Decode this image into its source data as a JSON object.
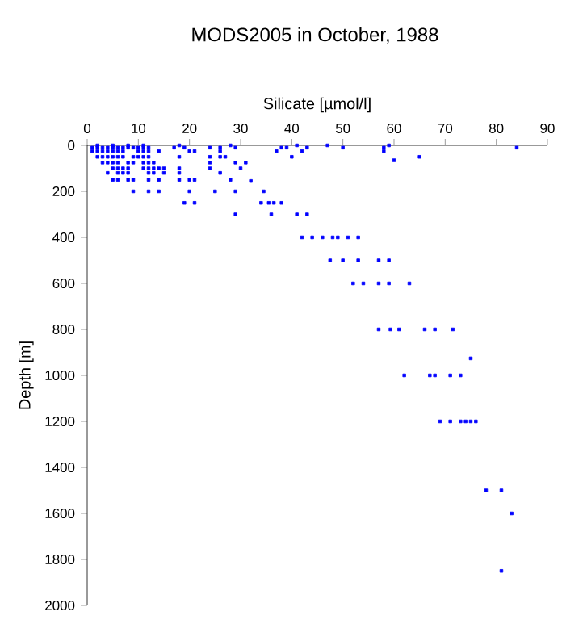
{
  "chart_data": {
    "type": "scatter",
    "title": "MODS2005 in October, 1988",
    "xlabel": "Silicate [µmol/l]",
    "ylabel": "Depth [m]",
    "xlim": [
      0,
      90
    ],
    "xticks": [
      0,
      10,
      20,
      30,
      40,
      50,
      60,
      70,
      80,
      90
    ],
    "ylim": [
      2000,
      0
    ],
    "yticks": [
      0,
      200,
      400,
      600,
      800,
      1000,
      1200,
      1400,
      1600,
      1800,
      2000
    ],
    "grid": false,
    "marker": "square",
    "series": [
      {
        "color": "#0000ff",
        "x": [
          1,
          2,
          3,
          4,
          5,
          6,
          7,
          8,
          9,
          10,
          11,
          12,
          17,
          19,
          24,
          26,
          29,
          38,
          39,
          43,
          50,
          58,
          84,
          2,
          5,
          8,
          11,
          18,
          28,
          41,
          47,
          59,
          1,
          2,
          3,
          4,
          5,
          6,
          7,
          10,
          11,
          12,
          14,
          20,
          21,
          26,
          37,
          42,
          58,
          2,
          3,
          4,
          5,
          6,
          7,
          9,
          10,
          11,
          12,
          18,
          24,
          26,
          27,
          40,
          60,
          65,
          3,
          4,
          5,
          6,
          8,
          9,
          11,
          12,
          13,
          24,
          29,
          31,
          5,
          6,
          7,
          8,
          11,
          12,
          13,
          14,
          15,
          18,
          24,
          30,
          4,
          6,
          7,
          8,
          12,
          13,
          15,
          18,
          26,
          5,
          6,
          8,
          9,
          12,
          14,
          18,
          20,
          21,
          28,
          32,
          9,
          12,
          14,
          20,
          25,
          29,
          34.5,
          19,
          21,
          34,
          35.5,
          36.5,
          38,
          29,
          36,
          41,
          43,
          42,
          44,
          46,
          48,
          49,
          51,
          53,
          47.5,
          50,
          53,
          57,
          59,
          52,
          54,
          57,
          59,
          63,
          57,
          59.3,
          61,
          66,
          68,
          71.5,
          75,
          62,
          67,
          68,
          71,
          73,
          69,
          71,
          73,
          74,
          75,
          76,
          78,
          81,
          83,
          81
        ],
        "values": [
          10,
          10,
          10,
          10,
          10,
          10,
          10,
          10,
          10,
          10,
          10,
          10,
          10,
          10,
          10,
          10,
          10,
          10,
          10,
          10,
          10,
          10,
          10,
          0,
          0,
          0,
          0,
          0,
          0,
          0,
          0,
          0,
          25,
          25,
          25,
          25,
          25,
          25,
          25,
          25,
          25,
          25,
          25,
          25,
          25,
          25,
          25,
          25,
          25,
          50,
          50,
          50,
          50,
          50,
          50,
          50,
          50,
          50,
          50,
          50,
          50,
          50,
          50,
          50,
          65,
          50,
          75,
          75,
          75,
          75,
          75,
          75,
          75,
          75,
          75,
          75,
          75,
          75,
          100,
          100,
          100,
          100,
          100,
          100,
          100,
          100,
          100,
          100,
          100,
          100,
          120,
          120,
          120,
          120,
          120,
          120,
          120,
          120,
          120,
          150,
          150,
          150,
          150,
          150,
          150,
          150,
          150,
          150,
          150,
          155,
          200,
          200,
          200,
          200,
          200,
          200,
          200,
          250,
          250,
          250,
          250,
          250,
          250,
          300,
          300,
          300,
          300,
          400,
          400,
          400,
          400,
          400,
          400,
          400,
          500,
          500,
          500,
          500,
          500,
          600,
          600,
          600,
          600,
          600,
          800,
          800,
          800,
          800,
          800,
          800,
          926,
          1000,
          1000,
          1000,
          1000,
          1000,
          1200,
          1200,
          1200,
          1200,
          1200,
          1200,
          1500,
          1500,
          1600,
          1850
        ]
      }
    ]
  }
}
